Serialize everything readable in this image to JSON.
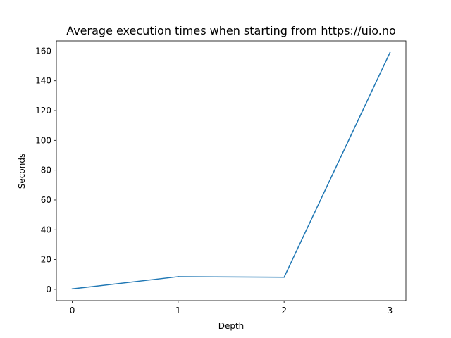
{
  "chart_data": {
    "type": "line",
    "title": "Average execution times when starting from https://uio.no",
    "xlabel": "Depth",
    "ylabel": "Seconds",
    "x": [
      0,
      1,
      2,
      3
    ],
    "series": [
      {
        "values": [
          0.3,
          8.5,
          8.1,
          159
        ],
        "color": "#1f77b4"
      }
    ],
    "xlim": [
      -0.15,
      3.15
    ],
    "ylim": [
      -7.6,
      166.8
    ],
    "xticks": [
      0,
      1,
      2,
      3
    ],
    "yticks": [
      0,
      20,
      40,
      60,
      80,
      100,
      120,
      140,
      160
    ],
    "grid": false,
    "legend": "none"
  }
}
